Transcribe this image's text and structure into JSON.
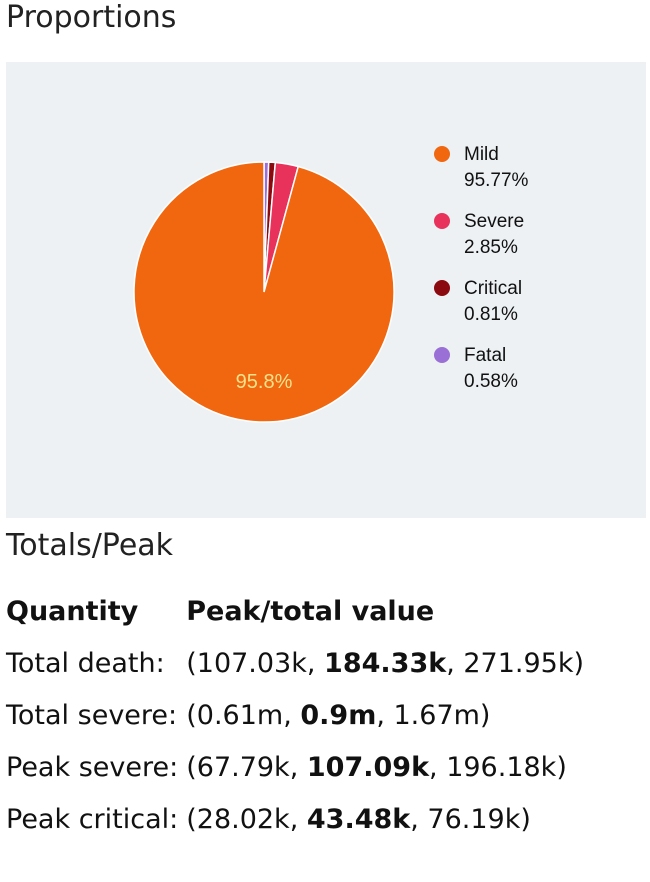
{
  "proportions_title": "Proportions",
  "totals_title": "Totals/Peak",
  "chart_data": {
    "type": "pie",
    "slices": [
      {
        "name": "Mild",
        "value": 95.77,
        "legend_value": "95.77%",
        "color": "#f0670f"
      },
      {
        "name": "Severe",
        "value": 2.85,
        "legend_value": "2.85%",
        "color": "#e8325c"
      },
      {
        "name": "Critical",
        "value": 0.81,
        "legend_value": "0.81%",
        "color": "#8b0a10"
      },
      {
        "name": "Fatal",
        "value": 0.58,
        "legend_value": "0.58%",
        "color": "#9a6fd6"
      }
    ],
    "slice_label": "95.8%",
    "legend_position": "right"
  },
  "table": {
    "headers": [
      "Quantity",
      "Peak/total value"
    ],
    "rows": [
      {
        "quantity": "Total death:",
        "low": "107.03k",
        "mid": "184.33k",
        "high": "271.95k"
      },
      {
        "quantity": "Total severe:",
        "low": "0.61m",
        "mid": "0.9m",
        "high": "1.67m"
      },
      {
        "quantity": "Peak severe:",
        "low": "67.79k",
        "mid": "107.09k",
        "high": "196.18k"
      },
      {
        "quantity": "Peak critical:",
        "low": "28.02k",
        "mid": "43.48k",
        "high": "76.19k"
      }
    ]
  }
}
